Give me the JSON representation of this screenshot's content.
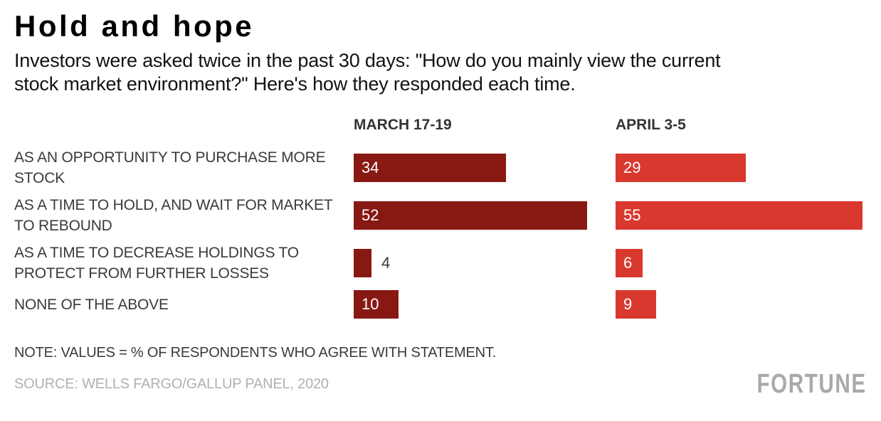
{
  "header": {
    "title": "Hold and hope",
    "subtitle": "Investors were asked twice in the past 30 days: \"How do you mainly view the current\nstock market environment?\" Here's how they responded each time."
  },
  "chart_data": {
    "type": "bar",
    "orientation": "horizontal",
    "value_unit": "% of respondents who agree with statement",
    "categories": [
      "AS AN OPPORTUNITY TO PURCHASE MORE\nSTOCK",
      "AS A TIME TO HOLD, AND WAIT FOR MARKET\nTO REBOUND",
      "AS A TIME TO DECREASE HOLDINGS TO\nPROTECT FROM FURTHER LOSSES",
      "NONE OF THE ABOVE"
    ],
    "series": [
      {
        "name": "MARCH 17-19",
        "color": "#881812",
        "values": [
          34,
          52,
          4,
          10
        ]
      },
      {
        "name": "APRIL 3-5",
        "color": "#d9382e",
        "values": [
          29,
          55,
          6,
          9
        ]
      }
    ],
    "xlim": [
      0,
      57
    ],
    "legend_position": "column headers above bars",
    "grid": false,
    "title": "Hold and hope"
  },
  "footer": {
    "note": "NOTE: VALUES = % OF RESPONDENTS WHO AGREE WITH STATEMENT.",
    "source": "SOURCE: WELLS FARGO/GALLUP PANEL, 2020",
    "brand": "FORTUNE"
  },
  "colors": {
    "march_bar": "#881812",
    "april_bar": "#d9382e",
    "bar_label_inside": "#ffffff",
    "bar_label_outside": "#3a3a3a",
    "heading_text": "#000000",
    "body_text": "#121212",
    "label_text": "#3a3a3a",
    "header_text": "#333333",
    "source_gray": "#b1b1b1",
    "brand_gray": "#a9a9a9"
  }
}
